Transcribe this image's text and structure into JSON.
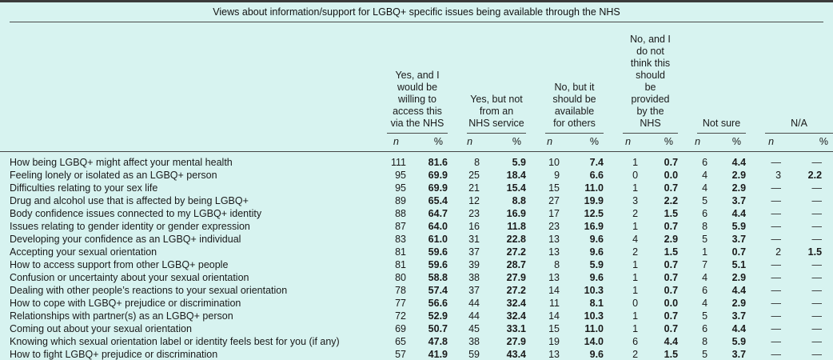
{
  "colors": {
    "background": "#d7f3f0",
    "text": "#1a1a1a",
    "rule_heavy": "#3b3b3b",
    "rule_light": "#4a4a4a"
  },
  "table": {
    "title": "Views about information/support for LGBQ+ specific issues being available through the NHS",
    "col_groups": [
      {
        "label": "Yes, and I\nwould be\nwilling to\naccess this\nvia the NHS"
      },
      {
        "label": "Yes, but not\nfrom an\nNHS service"
      },
      {
        "label": "No, but it\nshould be\navailable\nfor others"
      },
      {
        "label": "No, and I\ndo not\nthink this\nshould\nbe\nprovided\nby the\nNHS"
      },
      {
        "label": "Not sure"
      },
      {
        "label": "N/A"
      }
    ],
    "sub_headers": {
      "n": "n",
      "pct": "%"
    },
    "rows": [
      {
        "label": "How being LGBQ+ might affect your mental health",
        "values": [
          "111",
          "81.6",
          "8",
          "5.9",
          "10",
          "7.4",
          "1",
          "0.7",
          "6",
          "4.4",
          "—",
          "—"
        ]
      },
      {
        "label": "Feeling lonely or isolated as an LGBQ+ person",
        "values": [
          "95",
          "69.9",
          "25",
          "18.4",
          "9",
          "6.6",
          "0",
          "0.0",
          "4",
          "2.9",
          "3",
          "2.2"
        ]
      },
      {
        "label": "Difficulties relating to your sex life",
        "values": [
          "95",
          "69.9",
          "21",
          "15.4",
          "15",
          "11.0",
          "1",
          "0.7",
          "4",
          "2.9",
          "—",
          "—"
        ]
      },
      {
        "label": "Drug and alcohol use that is affected by being LGBQ+",
        "values": [
          "89",
          "65.4",
          "12",
          "8.8",
          "27",
          "19.9",
          "3",
          "2.2",
          "5",
          "3.7",
          "—",
          "—"
        ]
      },
      {
        "label": "Body confidence issues connected to my LGBQ+ identity",
        "values": [
          "88",
          "64.7",
          "23",
          "16.9",
          "17",
          "12.5",
          "2",
          "1.5",
          "6",
          "4.4",
          "—",
          "—"
        ]
      },
      {
        "label": "Issues relating to gender identity or gender expression",
        "values": [
          "87",
          "64.0",
          "16",
          "11.8",
          "23",
          "16.9",
          "1",
          "0.7",
          "8",
          "5.9",
          "—",
          "—"
        ]
      },
      {
        "label": "Developing your confidence as an LGBQ+ individual",
        "values": [
          "83",
          "61.0",
          "31",
          "22.8",
          "13",
          "9.6",
          "4",
          "2.9",
          "5",
          "3.7",
          "—",
          "—"
        ]
      },
      {
        "label": "Accepting your sexual orientation",
        "values": [
          "81",
          "59.6",
          "37",
          "27.2",
          "13",
          "9.6",
          "2",
          "1.5",
          "1",
          "0.7",
          "2",
          "1.5"
        ]
      },
      {
        "label": "How to access support from other LGBQ+ people",
        "values": [
          "81",
          "59.6",
          "39",
          "28.7",
          "8",
          "5.9",
          "1",
          "0.7",
          "7",
          "5.1",
          "—",
          "—"
        ]
      },
      {
        "label": "Confusion or uncertainty about your sexual orientation",
        "values": [
          "80",
          "58.8",
          "38",
          "27.9",
          "13",
          "9.6",
          "1",
          "0.7",
          "4",
          "2.9",
          "—",
          "—"
        ]
      },
      {
        "label": "Dealing with other people’s reactions to your sexual orientation",
        "values": [
          "78",
          "57.4",
          "37",
          "27.2",
          "14",
          "10.3",
          "1",
          "0.7",
          "6",
          "4.4",
          "—",
          "—"
        ]
      },
      {
        "label": "How to cope with LGBQ+ prejudice or discrimination",
        "values": [
          "77",
          "56.6",
          "44",
          "32.4",
          "11",
          "8.1",
          "0",
          "0.0",
          "4",
          "2.9",
          "—",
          "—"
        ]
      },
      {
        "label": "Relationships with partner(s) as an LGBQ+ person",
        "values": [
          "72",
          "52.9",
          "44",
          "32.4",
          "14",
          "10.3",
          "1",
          "0.7",
          "5",
          "3.7",
          "—",
          "—"
        ]
      },
      {
        "label": "Coming out about your sexual orientation",
        "values": [
          "69",
          "50.7",
          "45",
          "33.1",
          "15",
          "11.0",
          "1",
          "0.7",
          "6",
          "4.4",
          "—",
          "—"
        ]
      },
      {
        "label": "Knowing which sexual orientation label or identity feels best for you (if any)",
        "values": [
          "65",
          "47.8",
          "38",
          "27.9",
          "19",
          "14.0",
          "6",
          "4.4",
          "8",
          "5.9",
          "—",
          "—"
        ]
      },
      {
        "label": "How to fight LGBQ+ prejudice or discrimination",
        "values": [
          "57",
          "41.9",
          "59",
          "43.4",
          "13",
          "9.6",
          "2",
          "1.5",
          "5",
          "3.7",
          "—",
          "—"
        ]
      }
    ]
  }
}
